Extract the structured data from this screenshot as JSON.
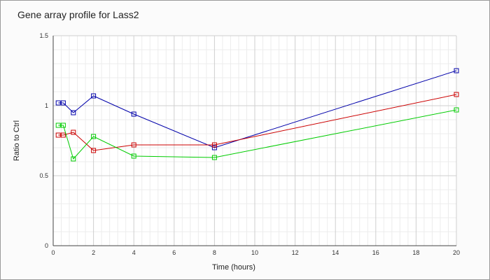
{
  "chart_data": {
    "type": "line",
    "title": "Gene array profile for Lass2",
    "xlabel": "Time (hours)",
    "ylabel": "Ratio to Ctrl",
    "xlim": [
      0,
      20
    ],
    "ylim": [
      0,
      1.5
    ],
    "xticks": [
      0,
      2,
      4,
      6,
      8,
      10,
      12,
      14,
      16,
      18,
      20
    ],
    "yticks": [
      0,
      0.5,
      1,
      1.5
    ],
    "ytick_labels": [
      "0",
      "0.5",
      "1",
      "1.5"
    ],
    "grid": true,
    "series": [
      {
        "color": "#0000aa",
        "x": [
          0.25,
          0.5,
          1,
          2,
          4,
          8,
          20
        ],
        "y": [
          1.02,
          1.02,
          0.95,
          1.07,
          0.94,
          0.7,
          1.25
        ]
      },
      {
        "color": "#cc0000",
        "x": [
          0.25,
          0.5,
          1,
          2,
          4,
          8,
          20
        ],
        "y": [
          0.79,
          0.79,
          0.81,
          0.68,
          0.72,
          0.72,
          1.08
        ]
      },
      {
        "color": "#00cc00",
        "x": [
          0.25,
          0.5,
          1,
          2,
          4,
          8,
          20
        ],
        "y": [
          0.86,
          0.86,
          0.62,
          0.78,
          0.64,
          0.63,
          0.97
        ]
      }
    ]
  }
}
